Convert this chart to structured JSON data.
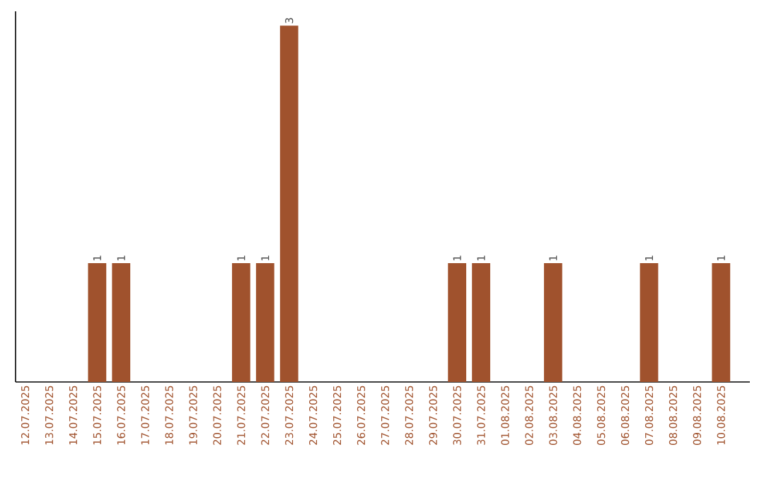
{
  "chart_data": {
    "type": "bar",
    "categories": [
      "12.07.2025",
      "13.07.2025",
      "14.07.2025",
      "15.07.2025",
      "16.07.2025",
      "17.07.2025",
      "18.07.2025",
      "19.07.2025",
      "20.07.2025",
      "21.07.2025",
      "22.07.2025",
      "23.07.2025",
      "24.07.2025",
      "25.07.2025",
      "26.07.2025",
      "27.07.2025",
      "28.07.2025",
      "29.07.2025",
      "30.07.2025",
      "31.07.2025",
      "01.08.2025",
      "02.08.2025",
      "03.08.2025",
      "04.08.2025",
      "05.08.2025",
      "06.08.2025",
      "07.08.2025",
      "08.08.2025",
      "09.08.2025",
      "10.08.2025"
    ],
    "values": [
      0,
      0,
      0,
      1,
      1,
      0,
      0,
      0,
      0,
      1,
      1,
      3,
      0,
      0,
      0,
      0,
      0,
      0,
      1,
      1,
      0,
      0,
      1,
      0,
      0,
      0,
      1,
      0,
      0,
      1
    ],
    "value_labels": [
      null,
      null,
      null,
      "1",
      "1",
      null,
      null,
      null,
      null,
      "1",
      "1",
      "3",
      null,
      null,
      null,
      null,
      null,
      null,
      "1",
      "1",
      null,
      null,
      "1",
      null,
      null,
      null,
      "1",
      null,
      null,
      "1"
    ],
    "color": "#a0522d"
  }
}
